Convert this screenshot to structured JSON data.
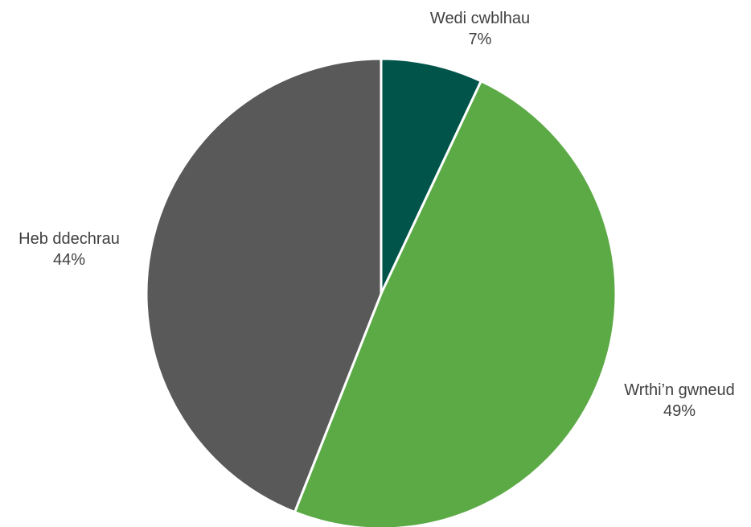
{
  "chart_data": {
    "type": "pie",
    "title": "",
    "slices": [
      {
        "label": "Wedi cwblhau",
        "value": 7,
        "value_label": "7%",
        "color": "#00544A"
      },
      {
        "label": "Wrthi’n gwneud",
        "value": 49,
        "value_label": "49%",
        "color": "#5CAA46"
      },
      {
        "label": "Heb ddechrau",
        "value": 44,
        "value_label": "44%",
        "color": "#595959"
      }
    ],
    "start_angle": "12 o'clock",
    "direction": "clockwise",
    "label_color": "#404040",
    "separator_color": "#FFFFFF"
  }
}
